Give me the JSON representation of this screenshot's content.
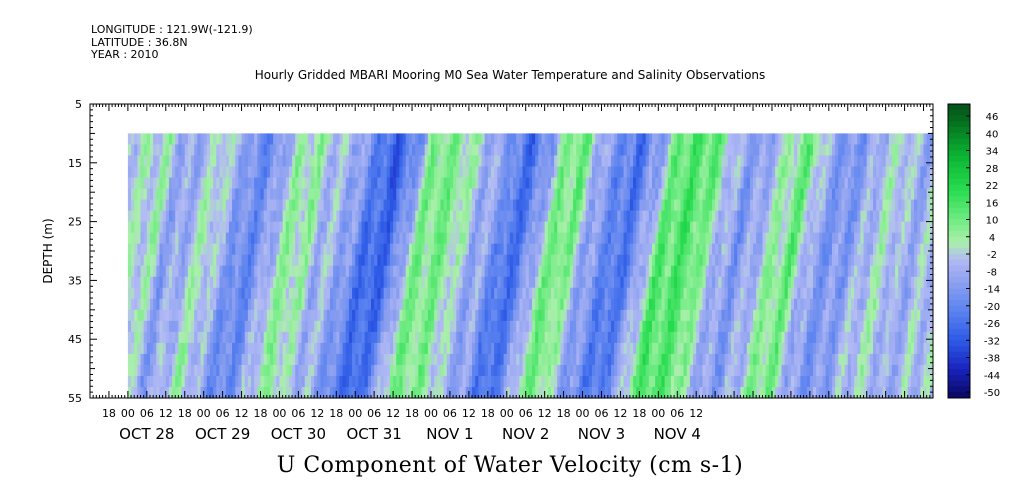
{
  "header": {
    "longitude": "LONGITUDE : 121.9W(-121.9)",
    "latitude": "LATITUDE : 36.8N",
    "year": "YEAR : 2010"
  },
  "chart_data": {
    "type": "heatmap",
    "title": "Hourly Gridded MBARI Mooring M0 Sea Water Temperature and Salinity Observations",
    "bottom_title": "U Component of Water Velocity (cm s-1)",
    "ylabel": "DEPTH (m)",
    "xlabel": "",
    "ylim": [
      5,
      55
    ],
    "y_inverted": true,
    "y_ticks": [
      5,
      15,
      25,
      35,
      45,
      55
    ],
    "data_depth_range": [
      10,
      55
    ],
    "x_range_hours": [
      -12,
      255
    ],
    "x_hour_ticks": [
      "18",
      "00",
      "06",
      "12",
      "18",
      "00",
      "06",
      "12",
      "18",
      "00",
      "06",
      "12",
      "18",
      "00",
      "06",
      "12",
      "18",
      "00",
      "06",
      "12",
      "18",
      "00",
      "06",
      "12",
      "18",
      "00",
      "06",
      "12",
      "18",
      "00",
      "06",
      "12"
    ],
    "x_day_labels": [
      "OCT 28",
      "OCT 29",
      "OCT 30",
      "OCT 31",
      "NOV  1",
      "NOV  2",
      "NOV  3",
      "NOV  4"
    ],
    "data_start_hour": 0,
    "data_end_hour": 252,
    "colorbar_levels": [
      46,
      40,
      34,
      28,
      22,
      16,
      10,
      4,
      -2,
      -8,
      -14,
      -20,
      -26,
      -32,
      -38,
      -44,
      -50
    ],
    "colorbar_range": [
      -50,
      52
    ],
    "column_profile": {
      "hours": [
        0,
        6,
        12,
        18,
        24,
        30,
        36,
        42,
        48,
        54,
        60,
        66,
        72,
        78,
        84,
        90,
        96,
        102,
        108,
        114,
        120,
        126,
        132,
        138,
        144,
        150,
        156,
        162,
        168,
        174,
        180,
        186,
        192,
        198,
        204,
        210,
        216,
        222,
        228,
        234,
        240,
        246,
        252
      ],
      "u_cm_s": [
        0,
        4,
        -10,
        -4,
        4,
        -8,
        -18,
        -12,
        4,
        6,
        -4,
        -6,
        -18,
        -28,
        -20,
        8,
        10,
        6,
        -6,
        -10,
        -26,
        -16,
        8,
        12,
        -8,
        -16,
        -24,
        -10,
        14,
        16,
        12,
        -4,
        -12,
        -6,
        6,
        12,
        -8,
        -14,
        -10,
        -2,
        2,
        -8,
        -2
      ]
    }
  }
}
